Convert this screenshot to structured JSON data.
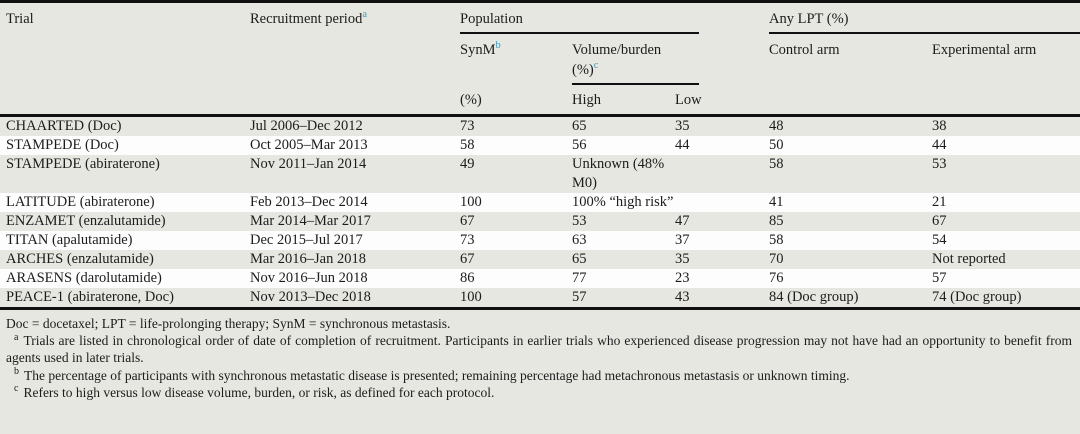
{
  "colors": {
    "background": "#e6e7e1",
    "white_row": "#fdfdfd",
    "rule": "#111111",
    "text": "#1c1c1c",
    "superscript_accent": "#3a9cc4"
  },
  "table": {
    "header": {
      "trial": "Trial",
      "recruitment": "Recruitment period",
      "recruitment_sup": "a",
      "population_group": "Population",
      "synm": "SynM",
      "synm_sup": "b",
      "synm_unit": "(%)",
      "volume_line1": "Volume/burden",
      "volume_line2": "(%)",
      "volume_sup": "c",
      "high": "High",
      "low": "Low",
      "any_lpt_group": "Any LPT (%)",
      "control": "Control arm",
      "experimental": "Experimental arm"
    },
    "rows": [
      {
        "trial": "CHAARTED (Doc)",
        "period": "Jul 2006–Dec 2012",
        "synm": "73",
        "high": "65",
        "low": "35",
        "control": "48",
        "experimental": "38"
      },
      {
        "trial": "STAMPEDE (Doc)",
        "period": "Oct 2005–Mar 2013",
        "synm": "58",
        "high": "56",
        "low": "44",
        "control": "50",
        "experimental": "44"
      },
      {
        "trial": "STAMPEDE (abiraterone)",
        "period": "Nov 2011–Jan 2014",
        "synm": "49",
        "volume_span": "Unknown (48% M0)",
        "control": "58",
        "experimental": "53"
      },
      {
        "trial": "LATITUDE (abiraterone)",
        "period": "Feb 2013–Dec 2014",
        "synm": "100",
        "volume_span": "100% “high risk”",
        "control": "41",
        "experimental": "21"
      },
      {
        "trial": "ENZAMET (enzalutamide)",
        "period": "Mar 2014–Mar 2017",
        "synm": "67",
        "high": "53",
        "low": "47",
        "control": "85",
        "experimental": "67"
      },
      {
        "trial": "TITAN (apalutamide)",
        "period": "Dec 2015–Jul 2017",
        "synm": "73",
        "high": "63",
        "low": "37",
        "control": "58",
        "experimental": "54"
      },
      {
        "trial": "ARCHES (enzalutamide)",
        "period": "Mar 2016–Jan 2018",
        "synm": "67",
        "high": "65",
        "low": "35",
        "control": "70",
        "experimental": "Not reported"
      },
      {
        "trial": "ARASENS (darolutamide)",
        "period": "Nov 2016–Jun 2018",
        "synm": "86",
        "high": "77",
        "low": "23",
        "control": "76",
        "experimental": "57"
      },
      {
        "trial": "PEACE-1 (abiraterone, Doc)",
        "period": "Nov 2013–Dec 2018",
        "synm": "100",
        "high": "57",
        "low": "43",
        "control": "84 (Doc group)",
        "experimental": "74 (Doc group)"
      }
    ]
  },
  "footnotes": {
    "abbrev": "Doc = docetaxel; LPT = life-prolonging therapy; SynM = synchronous metastasis.",
    "a_marker": "a",
    "a_text": "Trials are listed in chronological order of date of completion of recruitment. Participants in earlier trials who experienced disease progression may not have had an opportunity to benefit from agents used in later trials.",
    "b_marker": "b",
    "b_text": "The percentage of participants with synchronous metastatic disease is presented; remaining percentage had metachronous metastasis or unknown timing.",
    "c_marker": "c",
    "c_text": "Refers to high versus low disease volume, burden, or risk, as defined for each protocol."
  }
}
